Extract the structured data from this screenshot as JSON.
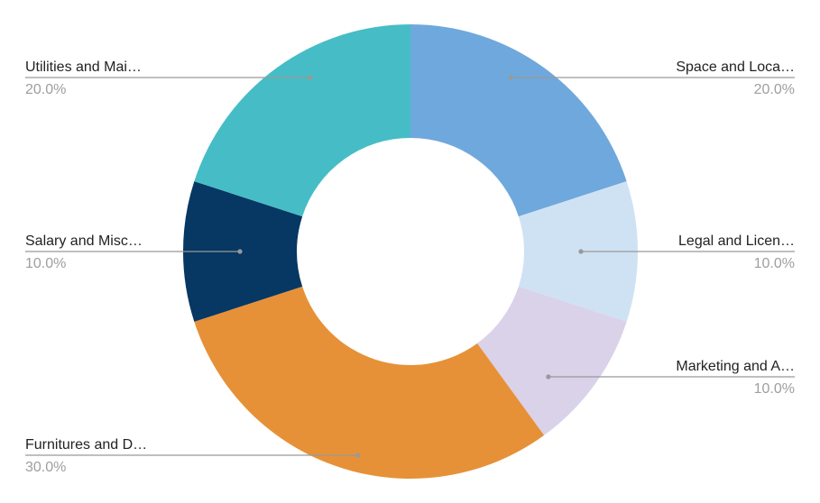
{
  "chart_data": {
    "type": "pie",
    "donut": true,
    "title": "",
    "slices": [
      {
        "label": "Space and Loca…",
        "value": 20.0,
        "value_label": "20.0%",
        "color": "#6FA8DC"
      },
      {
        "label": "Legal and Licen…",
        "value": 10.0,
        "value_label": "10.0%",
        "color": "#CFE2F3"
      },
      {
        "label": "Marketing and A…",
        "value": 10.0,
        "value_label": "10.0%",
        "color": "#D9D2E9"
      },
      {
        "label": "Furnitures and D…",
        "value": 30.0,
        "value_label": "30.0%",
        "color": "#E69138"
      },
      {
        "label": "Salary and Misc…",
        "value": 10.0,
        "value_label": "10.0%",
        "color": "#073763"
      },
      {
        "label": "Utilities and Mai…",
        "value": 20.0,
        "value_label": "20.0%",
        "color": "#46BDC6"
      }
    ],
    "start_angle": "12 o'clock",
    "direction": "clockwise",
    "leader_line_color": "#999999"
  }
}
